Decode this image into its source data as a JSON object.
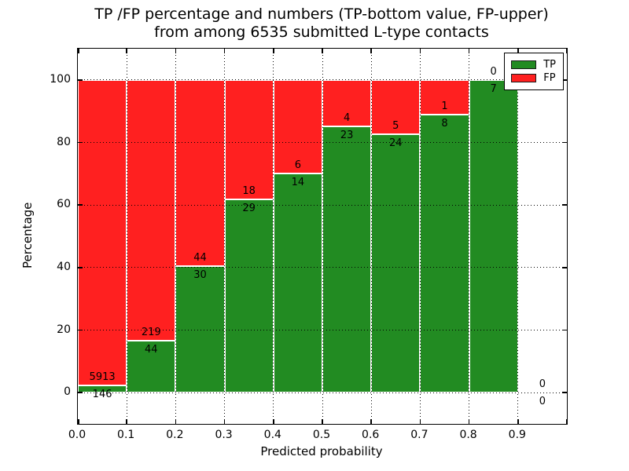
{
  "title": {
    "line1": "TP /FP percentage and numbers (TP-bottom value, FP-upper)",
    "line2": "from among 6535 submitted L-type contacts"
  },
  "chart_data": {
    "type": "bar",
    "stacked": true,
    "title": "TP /FP percentage and numbers (TP-bottom value, FP-upper) from among 6535 submitted L-type contacts",
    "xlabel": "Predicted probability",
    "ylabel": "Percentage",
    "xlim": [
      0.0,
      1.0
    ],
    "ylim": [
      -10,
      110
    ],
    "grid": true,
    "total_contacts": 6535,
    "x_ticks": [
      {
        "value": 0.0,
        "label": "0.0"
      },
      {
        "value": 0.1,
        "label": "0.1"
      },
      {
        "value": 0.2,
        "label": "0.2"
      },
      {
        "value": 0.3,
        "label": "0.3"
      },
      {
        "value": 0.4,
        "label": "0.4"
      },
      {
        "value": 0.5,
        "label": "0.5"
      },
      {
        "value": 0.6,
        "label": "0.6"
      },
      {
        "value": 0.7,
        "label": "0.7"
      },
      {
        "value": 0.8,
        "label": "0.8"
      },
      {
        "value": 0.9,
        "label": "0.9"
      },
      {
        "value": 1.0,
        "label": ""
      }
    ],
    "y_ticks": [
      {
        "value": 0,
        "label": "0"
      },
      {
        "value": 20,
        "label": "20"
      },
      {
        "value": 40,
        "label": "40"
      },
      {
        "value": 60,
        "label": "60"
      },
      {
        "value": 80,
        "label": "80"
      },
      {
        "value": 100,
        "label": "100"
      }
    ],
    "legend": {
      "position": "upper right",
      "entries": [
        {
          "label": "TP",
          "color": "#228B22"
        },
        {
          "label": "FP",
          "color": "#FF2020"
        }
      ]
    },
    "bins": [
      {
        "x_start": 0.0,
        "x_end": 0.1,
        "tp": 146,
        "fp": 5913,
        "tp_pct": 2.41
      },
      {
        "x_start": 0.1,
        "x_end": 0.2,
        "tp": 44,
        "fp": 219,
        "tp_pct": 16.73
      },
      {
        "x_start": 0.2,
        "x_end": 0.3,
        "tp": 30,
        "fp": 44,
        "tp_pct": 40.54
      },
      {
        "x_start": 0.3,
        "x_end": 0.4,
        "tp": 29,
        "fp": 18,
        "tp_pct": 61.7
      },
      {
        "x_start": 0.4,
        "x_end": 0.5,
        "tp": 14,
        "fp": 6,
        "tp_pct": 70.0
      },
      {
        "x_start": 0.5,
        "x_end": 0.6,
        "tp": 23,
        "fp": 4,
        "tp_pct": 85.19
      },
      {
        "x_start": 0.6,
        "x_end": 0.7,
        "tp": 24,
        "fp": 5,
        "tp_pct": 82.76
      },
      {
        "x_start": 0.7,
        "x_end": 0.8,
        "tp": 8,
        "fp": 1,
        "tp_pct": 88.89
      },
      {
        "x_start": 0.8,
        "x_end": 0.9,
        "tp": 7,
        "fp": 0,
        "tp_pct": 100.0
      },
      {
        "x_start": 0.9,
        "x_end": 1.0,
        "tp": 0,
        "fp": 0,
        "tp_pct": 0.0
      }
    ]
  },
  "colors": {
    "tp": "#228B22",
    "fp": "#FF2020",
    "background": "#FFFFFF",
    "grid": "#000000",
    "text": "#000000"
  }
}
